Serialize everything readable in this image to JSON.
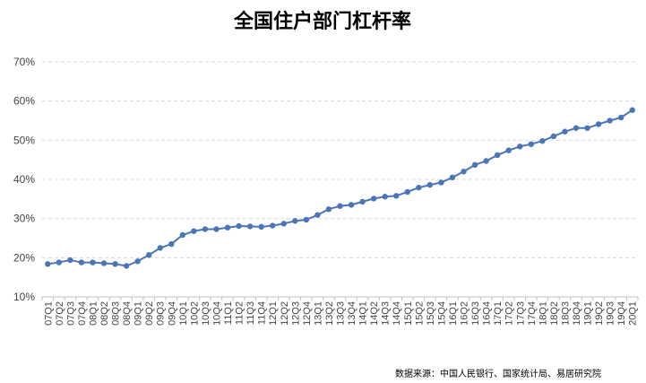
{
  "colors": {
    "series": "#4a76b5",
    "grid": "#d9d9d9"
  },
  "footer": {
    "source": "数据来源：中国人民银行、国家统计局、易居研究院"
  },
  "chart_data": {
    "type": "line",
    "title": "全国住户部门杠杆率",
    "xlabel": "",
    "ylabel": "",
    "ylim": [
      0.1,
      0.7
    ],
    "yticks": [
      0.1,
      0.2,
      0.3,
      0.4,
      0.5,
      0.6,
      0.7
    ],
    "ytick_labels": [
      "10%",
      "20%",
      "30%",
      "40%",
      "50%",
      "60%",
      "70%"
    ],
    "grid": true,
    "legend": "none",
    "categories": [
      "07Q1",
      "07Q2",
      "07Q3",
      "07Q4",
      "08Q1",
      "08Q2",
      "08Q3",
      "08Q4",
      "09Q1",
      "09Q2",
      "09Q3",
      "09Q4",
      "10Q1",
      "10Q2",
      "10Q3",
      "10Q4",
      "11Q1",
      "11Q2",
      "11Q3",
      "11Q4",
      "12Q1",
      "12Q2",
      "12Q3",
      "12Q4",
      "13Q1",
      "13Q2",
      "13Q3",
      "13Q4",
      "14Q1",
      "14Q2",
      "14Q3",
      "14Q4",
      "15Q1",
      "15Q2",
      "15Q3",
      "15Q4",
      "16Q1",
      "16Q2",
      "16Q3",
      "16Q4",
      "17Q1",
      "17Q2",
      "17Q3",
      "17Q4",
      "18Q1",
      "18Q2",
      "18Q3",
      "18Q4",
      "19Q1",
      "19Q2",
      "19Q3",
      "19Q4",
      "20Q1"
    ],
    "series": [
      {
        "values": [
          0.184,
          0.188,
          0.194,
          0.188,
          0.188,
          0.186,
          0.184,
          0.179,
          0.191,
          0.207,
          0.225,
          0.235,
          0.258,
          0.268,
          0.273,
          0.273,
          0.277,
          0.281,
          0.28,
          0.279,
          0.282,
          0.287,
          0.294,
          0.297,
          0.309,
          0.324,
          0.332,
          0.335,
          0.343,
          0.351,
          0.356,
          0.358,
          0.368,
          0.379,
          0.386,
          0.392,
          0.405,
          0.42,
          0.437,
          0.447,
          0.462,
          0.474,
          0.484,
          0.49,
          0.498,
          0.51,
          0.522,
          0.531,
          0.531,
          0.541,
          0.55,
          0.558,
          0.577
        ]
      }
    ]
  }
}
